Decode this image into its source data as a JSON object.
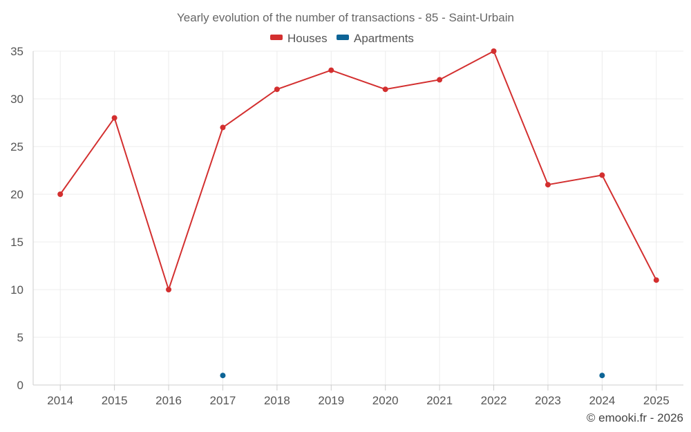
{
  "chart_data": {
    "type": "line",
    "title": "Yearly evolution of the number of transactions - 85 - Saint-Urbain",
    "categories": [
      "2014",
      "2015",
      "2016",
      "2017",
      "2018",
      "2019",
      "2020",
      "2021",
      "2022",
      "2023",
      "2024",
      "2025"
    ],
    "y_ticks": [
      "0",
      "5",
      "10",
      "15",
      "20",
      "25",
      "30",
      "35"
    ],
    "ylim": [
      0,
      35
    ],
    "xlabel": "",
    "ylabel": "",
    "grid": true,
    "legend_position": "top-center",
    "series": [
      {
        "name": "Houses",
        "color": "#d32f2f",
        "values": [
          20,
          28,
          10,
          27,
          31,
          33,
          31,
          32,
          35,
          21,
          22,
          11
        ]
      },
      {
        "name": "Apartments",
        "color": "#0d6496",
        "values": [
          null,
          null,
          null,
          1,
          null,
          null,
          null,
          null,
          null,
          null,
          1,
          null
        ]
      }
    ],
    "credit": "© emooki.fr - 2026"
  }
}
